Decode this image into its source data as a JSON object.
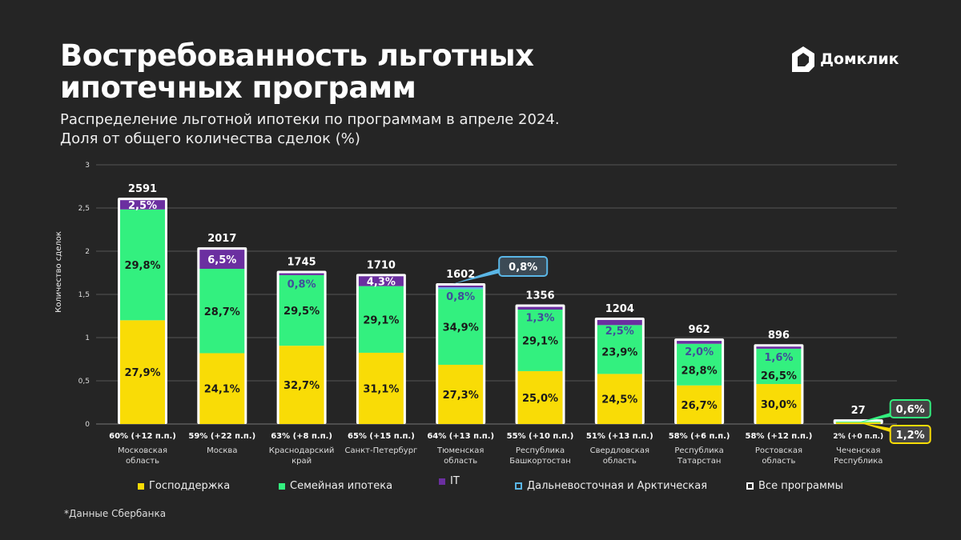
{
  "header": {
    "title_line1": "Востребованность льготных",
    "title_line2": "ипотечных программ",
    "subtitle_line1": "Распределение льготной ипотеки по программам в апреле 2024.",
    "subtitle_line2": "Доля от общего количества сделок (%)",
    "logo_text": "Домклик"
  },
  "footnote": "*Данные Сбербанка",
  "colors": {
    "gov": "#f9dc06",
    "family": "#33f07f",
    "it": "#6b2fa0",
    "fareast": "#5ab6e6",
    "all": "#ffffff",
    "background": "#252525"
  },
  "chart_data": {
    "type": "bar",
    "stacked": true,
    "ylabel": "Количество сделок",
    "ylim": [
      0,
      3
    ],
    "yticks": [
      "0",
      "0,5",
      "1",
      "1,5",
      "2",
      "2,5",
      "3"
    ],
    "grid": true,
    "legend_position": "bottom",
    "legend": [
      "Господдержка",
      "Семейная ипотека",
      "IT",
      "Дальневосточная и Арктическая",
      "Все программы"
    ],
    "categories": [
      {
        "name_line1": "Московская",
        "name_line2": "область",
        "total": 2591,
        "share": "60% (+12 п.п.)",
        "gov": 27.9,
        "family": 29.8,
        "it": 2.5,
        "fareast": 0
      },
      {
        "name_line1": "Москва",
        "name_line2": "",
        "total": 2017,
        "share": "59% (+22 п.п.)",
        "gov": 24.1,
        "family": 28.7,
        "it": 6.5,
        "fareast": 0
      },
      {
        "name_line1": "Краснодарский",
        "name_line2": "край",
        "total": 1745,
        "share": "63% (+8 п.п.)",
        "gov": 32.7,
        "family": 29.5,
        "it": 0.8,
        "fareast": 0
      },
      {
        "name_line1": "Санкт-Петербург",
        "name_line2": "",
        "total": 1710,
        "share": "65% (+15 п.п.)",
        "gov": 31.1,
        "family": 29.1,
        "it": 4.3,
        "fareast": 0
      },
      {
        "name_line1": "Тюменская",
        "name_line2": "область",
        "total": 1602,
        "share": "64% (+13 п.п.)",
        "gov": 27.3,
        "family": 34.9,
        "it": 0.8,
        "fareast": 0.8
      },
      {
        "name_line1": "Республика",
        "name_line2": "Башкортостан",
        "total": 1356,
        "share": "55% (+10 п.п.)",
        "gov": 25.0,
        "family": 29.1,
        "it": 1.3,
        "fareast": 0
      },
      {
        "name_line1": "Свердловская",
        "name_line2": "область",
        "total": 1204,
        "share": "51% (+13 п.п.)",
        "gov": 24.5,
        "family": 23.9,
        "it": 2.5,
        "fareast": 0
      },
      {
        "name_line1": "Республика",
        "name_line2": "Татарстан",
        "total": 962,
        "share": "58% (+6 п.п.)",
        "gov": 26.7,
        "family": 28.8,
        "it": 2.0,
        "fareast": 0
      },
      {
        "name_line1": "Ростовская",
        "name_line2": "область",
        "total": 896,
        "share": "58% (+12 п.п.)",
        "gov": 30.0,
        "family": 26.5,
        "it": 1.6,
        "fareast": 0
      },
      {
        "name_line1": "Чеченская",
        "name_line2": "Республика",
        "total": 27,
        "share": "2% (+0 п.п.)",
        "gov": 1.2,
        "family": 0.6,
        "it": 0,
        "fareast": 0
      }
    ]
  }
}
